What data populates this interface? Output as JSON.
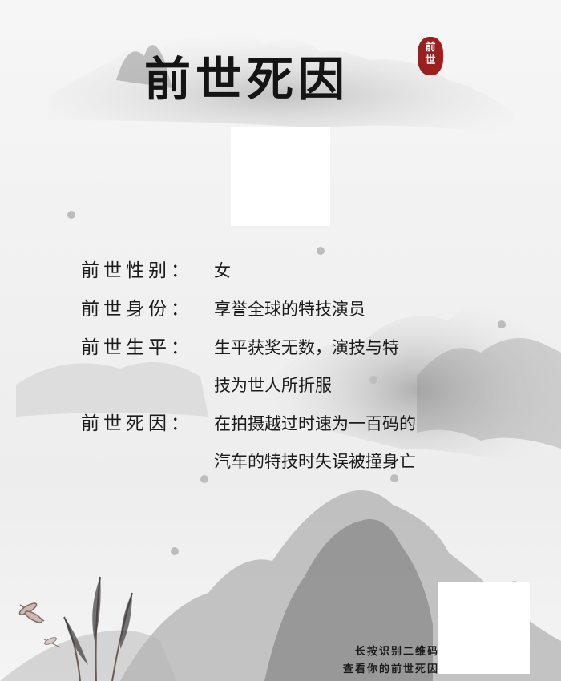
{
  "title": "前世死因",
  "seal": [
    "前",
    "世"
  ],
  "photo_placeholder": "",
  "fields": [
    {
      "label": "前世性别：",
      "value": "女"
    },
    {
      "label": "前世身份：",
      "value": "享誉全球的特技演员"
    },
    {
      "label": "前世生平：",
      "value": "生平获奖无数，演技与特\n技为世人所折服"
    },
    {
      "label": "前世死因：",
      "value": "在拍摄越过时速为一百码的\n汽车的特技时失误被撞身亡"
    }
  ],
  "footer": {
    "line1": "长按识别二维码",
    "line2": "查看你的前世死因"
  },
  "colors": {
    "ink": "#1c1c1c",
    "seal": "#9a1f1f",
    "background": "#f2f2f2"
  }
}
